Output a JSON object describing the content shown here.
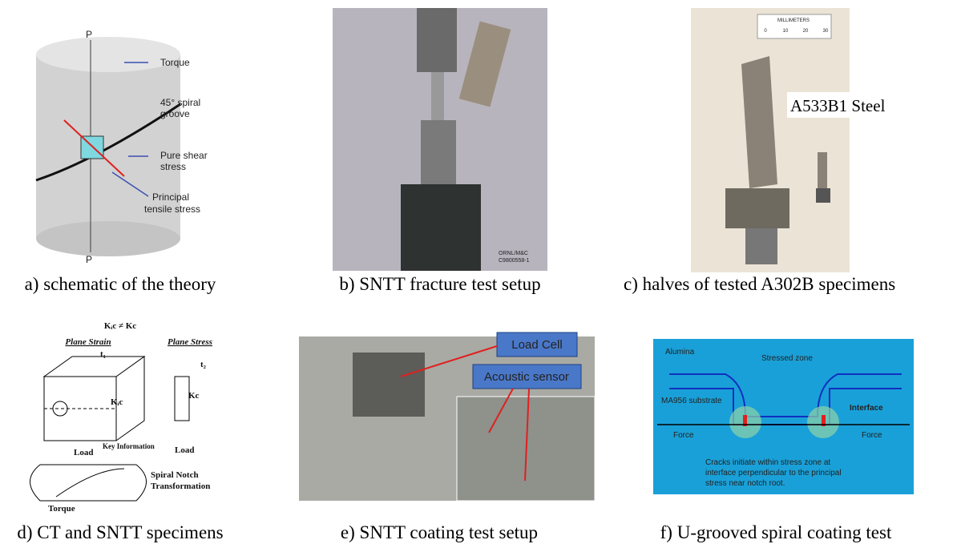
{
  "panels": [
    {
      "caption": "a) schematic of the theory",
      "labels": [
        "P",
        "Torque",
        "45° spiral",
        "groove",
        "Pure shear",
        "stress",
        "Principal",
        "tensile stress",
        "P"
      ]
    },
    {
      "caption": "b) SNTT fracture test setup",
      "labels": [
        "ORNL/M&C",
        "C9800558-1"
      ]
    },
    {
      "caption": "c) halves of tested A302B specimens",
      "labels": [
        "MILLIMETERS",
        "0",
        "10",
        "20",
        "30",
        "A533B1 Steel"
      ]
    },
    {
      "caption": "d) CT and SNTT specimens",
      "labels": [
        "Kᵢc ≠ Kc",
        "Plane Strain",
        "Plane Stress",
        "t₁",
        "t₂",
        "Kᵢc",
        "Kc",
        "Key Information",
        "Load",
        "Load",
        "Spiral Notch",
        "Transformation",
        "Torque"
      ]
    },
    {
      "caption": "e) SNTT coating test setup",
      "labels": [
        "Load Cell",
        "Acoustic sensor"
      ]
    },
    {
      "caption": "f) U-grooved spiral coating test",
      "labels": [
        "Alumina",
        "Stressed zone",
        "MA956 substrate",
        "Interface",
        "Force",
        "Force",
        "Cracks initiate within stress zone at",
        "interface perpendicular to the principal",
        "stress near notch root."
      ]
    }
  ]
}
